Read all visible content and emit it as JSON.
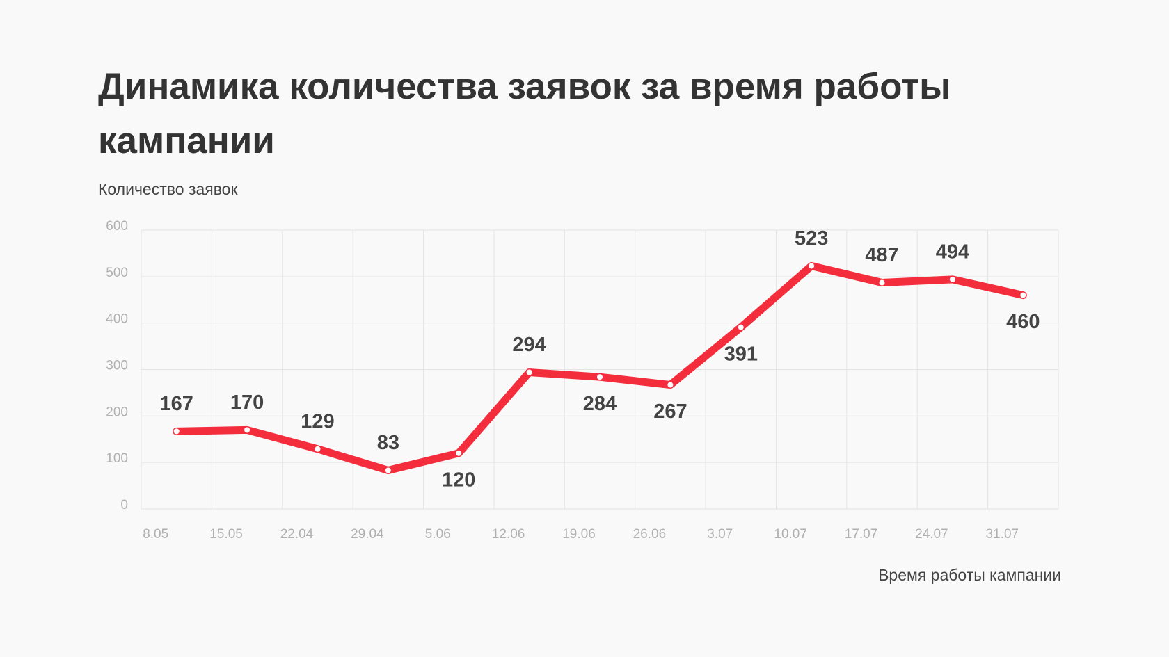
{
  "chart_data": {
    "type": "line",
    "title": "Динамика количества заявок за время работы кампании",
    "y_label": "Количество заявок",
    "x_label": "Время работы кампании",
    "categories": [
      "8.05",
      "15.05",
      "22.04",
      "29.04",
      "5.06",
      "12.06",
      "19.06",
      "26.06",
      "3.07",
      "10.07",
      "17.07",
      "24.07",
      "31.07"
    ],
    "series": [
      {
        "name": "Количество заявок",
        "color": "#f42d3d",
        "values": [
          167,
          170,
          129,
          83,
          120,
          294,
          284,
          267,
          391,
          523,
          487,
          494,
          460
        ]
      }
    ],
    "ylim": [
      0,
      600
    ],
    "yticks": [
      0,
      100,
      200,
      300,
      400,
      500,
      600
    ],
    "grid": true
  }
}
